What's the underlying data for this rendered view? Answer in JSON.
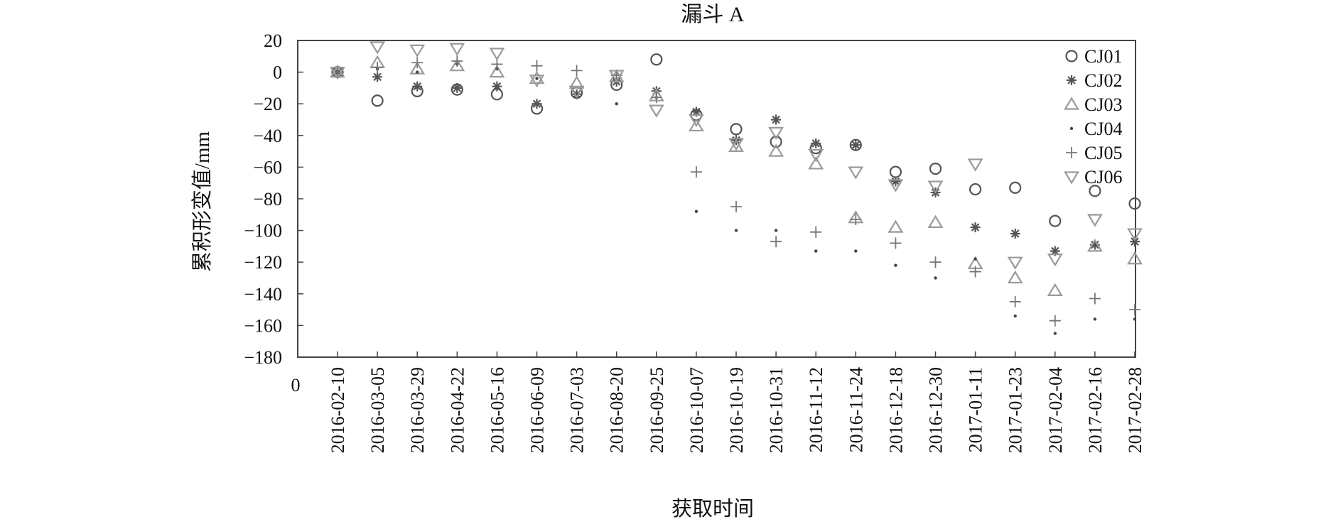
{
  "chart_data": {
    "type": "scatter",
    "title": "漏斗 A",
    "xlabel": "获取时间",
    "ylabel": "累积形变值/mm",
    "x_origin_label": "0",
    "categories": [
      "2016-02-10",
      "2016-03-05",
      "2016-03-29",
      "2016-04-22",
      "2016-05-16",
      "2016-06-09",
      "2016-07-03",
      "2016-08-20",
      "2016-09-25",
      "2016-10-07",
      "2016-10-19",
      "2016-10-31",
      "2016-11-12",
      "2016-11-24",
      "2016-12-18",
      "2016-12-30",
      "2017-01-11",
      "2017-01-23",
      "2017-02-04",
      "2017-02-16",
      "2017-02-28"
    ],
    "ylim": [
      -180,
      20
    ],
    "yticks": [
      20,
      0,
      -20,
      -40,
      -60,
      -80,
      -100,
      -120,
      -140,
      -160,
      -180
    ],
    "grid": false,
    "legend_position": "top-right",
    "series": [
      {
        "name": "CJ01",
        "marker": "circle",
        "color": "#555555",
        "values": [
          0,
          -18,
          -12,
          -11,
          -14,
          -23,
          -13,
          -8,
          8,
          -27,
          -36,
          -44,
          -48,
          -46,
          -63,
          -61,
          -74,
          -73,
          -94,
          -75,
          -83
        ]
      },
      {
        "name": "CJ02",
        "marker": "asterisk",
        "color": "#555555",
        "values": [
          0,
          -3,
          -9,
          -10,
          -9,
          -20,
          -14,
          -6,
          -12,
          -25,
          -43,
          -30,
          -45,
          -46,
          -69,
          -76,
          -98,
          -102,
          -113,
          -109,
          -107
        ]
      },
      {
        "name": "CJ03",
        "marker": "triangle-up",
        "color": "#9a9a9a",
        "values": [
          0,
          6,
          2,
          4,
          0,
          -4,
          -7,
          -3,
          -15,
          -34,
          -47,
          -50,
          -58,
          -92,
          -98,
          -95,
          -121,
          -130,
          -138,
          -110,
          -118
        ]
      },
      {
        "name": "CJ04",
        "marker": "dot",
        "color": "#444444",
        "values": [
          0,
          2,
          0,
          5,
          2,
          -4,
          -14,
          -20,
          -16,
          -88,
          -100,
          -100,
          -113,
          -113,
          -122,
          -130,
          -118,
          -154,
          -165,
          -156,
          -156
        ]
      },
      {
        "name": "CJ05",
        "marker": "plus",
        "color": "#777777",
        "values": [
          0,
          3,
          6,
          7,
          5,
          4,
          1,
          -2,
          -16,
          -63,
          -85,
          -107,
          -101,
          -93,
          -108,
          -120,
          -126,
          -145,
          -157,
          -143,
          -150
        ]
      },
      {
        "name": "CJ06",
        "marker": "triangle-down",
        "color": "#9a9a9a",
        "values": [
          0,
          16,
          14,
          15,
          12,
          -5,
          -12,
          -2,
          -24,
          -30,
          -45,
          -38,
          -52,
          -63,
          -71,
          -72,
          -58,
          -120,
          -118,
          -93,
          -102
        ]
      }
    ]
  }
}
